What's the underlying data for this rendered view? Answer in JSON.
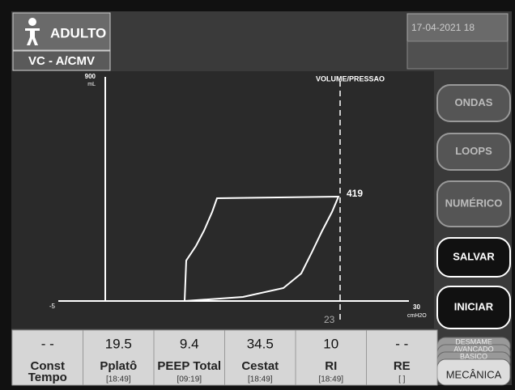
{
  "header": {
    "patient": "ADULTO",
    "mode": "VC - A/CMV",
    "date": "17-04-2021 18"
  },
  "plot": {
    "title": "VOLUME/PRESSAO",
    "y_max": "900",
    "y_unit": "mL",
    "x_min": "-5",
    "x_max": "30",
    "x_unit": "cmH2O",
    "peak_volume": "419",
    "peak_pressure": "23"
  },
  "buttons": [
    "ONDAS",
    "LOOPS",
    "NUMÉRICO",
    "SALVAR",
    "INICIAR"
  ],
  "menu": [
    "DESMAME",
    "AVANÇADO",
    "BASICO",
    "MECÂNICA"
  ],
  "parameters": [
    {
      "value": "- -",
      "label_lines": [
        "Const",
        "Tempo"
      ]
    },
    {
      "value": "19.5",
      "label_lines": [
        "Pplatô"
      ],
      "time": "[18:49]"
    },
    {
      "value": "9.4",
      "label_lines": [
        "PEEP Total"
      ],
      "time": "[09:19]"
    },
    {
      "value": "34.5",
      "label_lines": [
        "Cestat"
      ],
      "time": "[18:49]"
    },
    {
      "value": "10",
      "label_lines": [
        "RI"
      ],
      "time": "[18:49]"
    },
    {
      "value": "- -",
      "label_lines": [
        "RE"
      ],
      "time": "[ ]"
    }
  ]
}
